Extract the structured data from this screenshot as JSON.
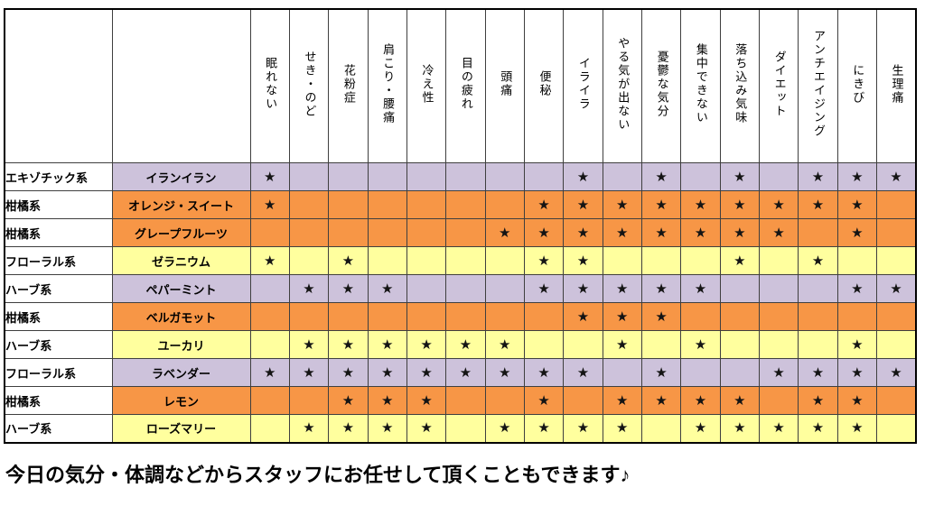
{
  "page": {
    "footer_note": "今日の気分・体調などからスタッフにお任せして頂くこともできます♪"
  },
  "colors": {
    "purple": "#CDC2DB",
    "orange": "#F79646",
    "yellow": "#FFFF9E",
    "grid": "#3f3f3f",
    "star": "#141414"
  },
  "table": {
    "star_symbol": "★",
    "symptom_columns": [
      "眠れない",
      "せき・のど",
      "花粉症",
      "肩こり・腰痛",
      "冷え性",
      "目の疲れ",
      "頭痛",
      "便秘",
      "イライラ",
      "やる気が出ない",
      "憂鬱な気分",
      "集中できない",
      "落ち込み気味",
      "ダイエット",
      "アンチエイジング",
      "にきび",
      "生理痛"
    ],
    "rows": [
      {
        "category": "エキゾチック系",
        "name": "イランイラン",
        "color": "purple",
        "stars": [
          1,
          0,
          0,
          0,
          0,
          0,
          0,
          0,
          1,
          0,
          1,
          0,
          1,
          0,
          1,
          1,
          1
        ]
      },
      {
        "category": "柑橘系",
        "name": "オレンジ・スイート",
        "color": "orange",
        "stars": [
          1,
          0,
          0,
          0,
          0,
          0,
          0,
          1,
          1,
          1,
          1,
          1,
          1,
          1,
          1,
          1,
          0
        ]
      },
      {
        "category": "柑橘系",
        "name": "グレープフルーツ",
        "color": "orange",
        "stars": [
          0,
          0,
          0,
          0,
          0,
          0,
          1,
          1,
          1,
          1,
          1,
          1,
          1,
          1,
          0,
          1,
          0
        ]
      },
      {
        "category": "フローラル系",
        "name": "ゼラニウム",
        "color": "yellow",
        "stars": [
          1,
          0,
          1,
          0,
          0,
          0,
          0,
          1,
          1,
          0,
          0,
          0,
          1,
          0,
          1,
          0,
          0
        ]
      },
      {
        "category": "ハーブ系",
        "name": "ペパーミント",
        "color": "purple",
        "stars": [
          0,
          1,
          1,
          1,
          0,
          0,
          0,
          1,
          1,
          1,
          1,
          1,
          0,
          0,
          0,
          1,
          1
        ]
      },
      {
        "category": "柑橘系",
        "name": "ベルガモット",
        "color": "orange",
        "stars": [
          0,
          0,
          0,
          0,
          0,
          0,
          0,
          0,
          1,
          1,
          1,
          0,
          0,
          0,
          0,
          0,
          0
        ]
      },
      {
        "category": "ハーブ系",
        "name": "ユーカリ",
        "color": "yellow",
        "stars": [
          0,
          1,
          1,
          1,
          1,
          1,
          1,
          0,
          0,
          1,
          0,
          1,
          0,
          0,
          0,
          1,
          0
        ]
      },
      {
        "category": "フローラル系",
        "name": "ラベンダー",
        "color": "purple",
        "stars": [
          1,
          1,
          1,
          1,
          1,
          1,
          1,
          1,
          1,
          0,
          1,
          0,
          0,
          1,
          1,
          1,
          1
        ]
      },
      {
        "category": "柑橘系",
        "name": "レモン",
        "color": "orange",
        "stars": [
          0,
          0,
          1,
          1,
          1,
          0,
          0,
          1,
          0,
          1,
          1,
          1,
          1,
          0,
          1,
          1,
          0
        ]
      },
      {
        "category": "ハーブ系",
        "name": "ローズマリー",
        "color": "yellow",
        "stars": [
          0,
          1,
          1,
          1,
          1,
          0,
          1,
          1,
          1,
          1,
          0,
          1,
          1,
          1,
          1,
          1,
          0
        ]
      }
    ]
  }
}
